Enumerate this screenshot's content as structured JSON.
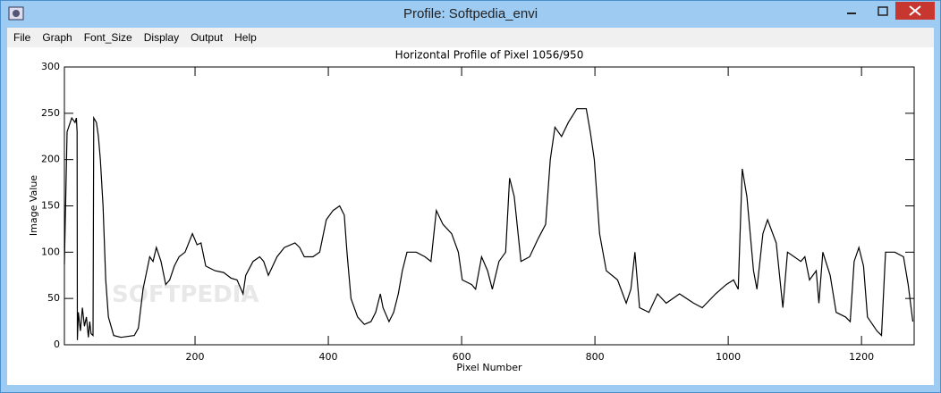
{
  "window": {
    "title": "Profile: Softpedia_envi"
  },
  "menu": [
    "File",
    "Graph",
    "Font_Size",
    "Display",
    "Output",
    "Help"
  ],
  "watermark": "SOFTPEDIA",
  "chart_data": {
    "type": "line",
    "title": "Horizontal Profile of Pixel 1056/950",
    "x_label": "Pixel Number",
    "y_label": "Image Value",
    "xlim": [
      4,
      1279
    ],
    "ylim": [
      0,
      300
    ],
    "xticks": [
      200,
      400,
      600,
      800,
      1000,
      1200
    ],
    "yticks": [
      0,
      50,
      100,
      150,
      200,
      250,
      300
    ],
    "x": [
      4,
      8,
      15,
      20,
      22,
      23,
      23.5,
      25,
      28,
      31,
      34,
      37,
      40,
      42,
      44,
      47,
      48,
      52,
      55,
      58,
      62,
      66,
      70,
      78,
      89,
      109,
      115,
      122,
      132,
      137,
      142,
      149,
      156,
      162,
      169,
      176,
      185,
      196,
      203,
      209,
      216,
      230,
      243,
      254,
      263,
      272,
      276,
      287,
      297,
      303,
      310,
      323,
      334,
      350,
      357,
      364,
      377,
      387,
      397,
      407,
      417,
      424,
      428,
      434,
      444,
      454,
      464,
      471,
      478,
      482,
      491,
      498,
      505,
      511,
      518,
      532,
      545,
      554,
      562,
      572,
      585,
      595,
      601,
      615,
      621,
      630,
      639,
      646,
      656,
      666,
      672,
      679,
      689,
      702,
      715,
      726,
      733,
      740,
      750,
      760,
      773,
      787,
      793,
      799,
      807,
      817,
      834,
      847,
      854,
      860,
      867,
      881,
      894,
      907,
      927,
      948,
      961,
      981,
      997,
      1008,
      1015,
      1021,
      1028,
      1038,
      1043,
      1052,
      1059,
      1072,
      1082,
      1089,
      1109,
      1115,
      1122,
      1132,
      1136,
      1142,
      1153,
      1162,
      1176,
      1183,
      1189,
      1196,
      1203,
      1209,
      1223,
      1230,
      1236,
      1250,
      1263,
      1270,
      1277
    ],
    "series": [
      {
        "name": "profile",
        "color": "#000000",
        "values": [
          87,
          230,
          245,
          240,
          245,
          230,
          5,
          35,
          15,
          40,
          20,
          30,
          8,
          25,
          12,
          10,
          245,
          240,
          225,
          200,
          150,
          70,
          30,
          10,
          8,
          10,
          18,
          60,
          95,
          90,
          105,
          90,
          65,
          70,
          85,
          95,
          100,
          120,
          108,
          110,
          85,
          80,
          78,
          72,
          70,
          55,
          75,
          90,
          95,
          90,
          75,
          95,
          105,
          110,
          105,
          95,
          95,
          100,
          135,
          145,
          150,
          140,
          100,
          50,
          30,
          22,
          25,
          35,
          55,
          40,
          25,
          35,
          55,
          80,
          100,
          100,
          95,
          90,
          145,
          130,
          120,
          100,
          70,
          65,
          60,
          95,
          80,
          60,
          90,
          100,
          180,
          160,
          90,
          95,
          115,
          130,
          200,
          235,
          225,
          240,
          255,
          255,
          230,
          200,
          120,
          80,
          70,
          45,
          60,
          100,
          40,
          35,
          55,
          45,
          55,
          45,
          40,
          55,
          65,
          70,
          60,
          190,
          160,
          80,
          60,
          120,
          135,
          110,
          40,
          100,
          90,
          95,
          70,
          80,
          45,
          100,
          75,
          35,
          30,
          25,
          90,
          105,
          85,
          30,
          15,
          10,
          100,
          100,
          95,
          65,
          25
        ]
      }
    ]
  }
}
